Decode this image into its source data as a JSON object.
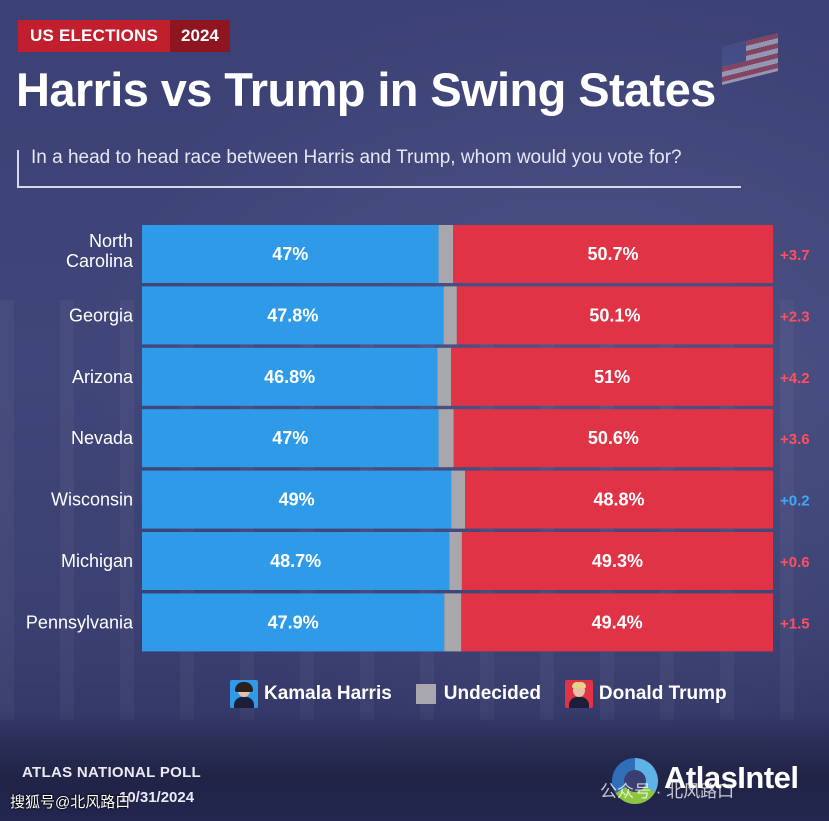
{
  "header": {
    "badge_left": "US ELECTIONS",
    "badge_right": "2024",
    "title": "Harris vs Trump in Swing States",
    "subtitle": "In a head to head race between Harris and Trump, whom would you vote for?"
  },
  "colors": {
    "harris": "#2f9be8",
    "undecided": "#a8a8ac",
    "trump": "#e03346",
    "margin_trump": "#ff4f5f",
    "margin_harris": "#3fa9f5"
  },
  "chart_data": {
    "type": "bar",
    "orientation": "horizontal",
    "stacked": true,
    "categories": [
      "North Carolina",
      "Georgia",
      "Arizona",
      "Nevada",
      "Wisconsin",
      "Michigan",
      "Pennsylvania"
    ],
    "series": [
      {
        "name": "Kamala Harris",
        "values": [
          47,
          47.8,
          46.8,
          47,
          49,
          48.7,
          47.9
        ],
        "labels": [
          "47%",
          "47.8%",
          "46.8%",
          "47%",
          "49%",
          "48.7%",
          "47.9%"
        ]
      },
      {
        "name": "Undecided",
        "values": [
          2.3,
          2.1,
          2.2,
          2.4,
          2.2,
          2.0,
          2.7
        ]
      },
      {
        "name": "Donald Trump",
        "values": [
          50.7,
          50.1,
          51,
          50.6,
          48.8,
          49.3,
          49.4
        ],
        "labels": [
          "50.7%",
          "50.1%",
          "51%",
          "50.6%",
          "48.8%",
          "49.3%",
          "49.4%"
        ]
      }
    ],
    "margins": [
      {
        "label": "+3.7",
        "leader": "trump"
      },
      {
        "label": "+2.3",
        "leader": "trump"
      },
      {
        "label": "+4.2",
        "leader": "trump"
      },
      {
        "label": "+3.6",
        "leader": "trump"
      },
      {
        "label": "+0.2",
        "leader": "harris"
      },
      {
        "label": "+0.6",
        "leader": "trump"
      },
      {
        "label": "+1.5",
        "leader": "trump"
      }
    ],
    "xlim": [
      0,
      100
    ],
    "legend_position": "bottom",
    "grid": false
  },
  "legend": {
    "harris": "Kamala Harris",
    "undecided": "Undecided",
    "trump": "Donald Trump"
  },
  "footer": {
    "source": "ATLAS NATIONAL POLL",
    "date": "10/31/2024",
    "brand": "AtlasIntel",
    "watermark_left": "搜狐号@北风路口",
    "watermark_right": "公众号 · 北风路口"
  }
}
